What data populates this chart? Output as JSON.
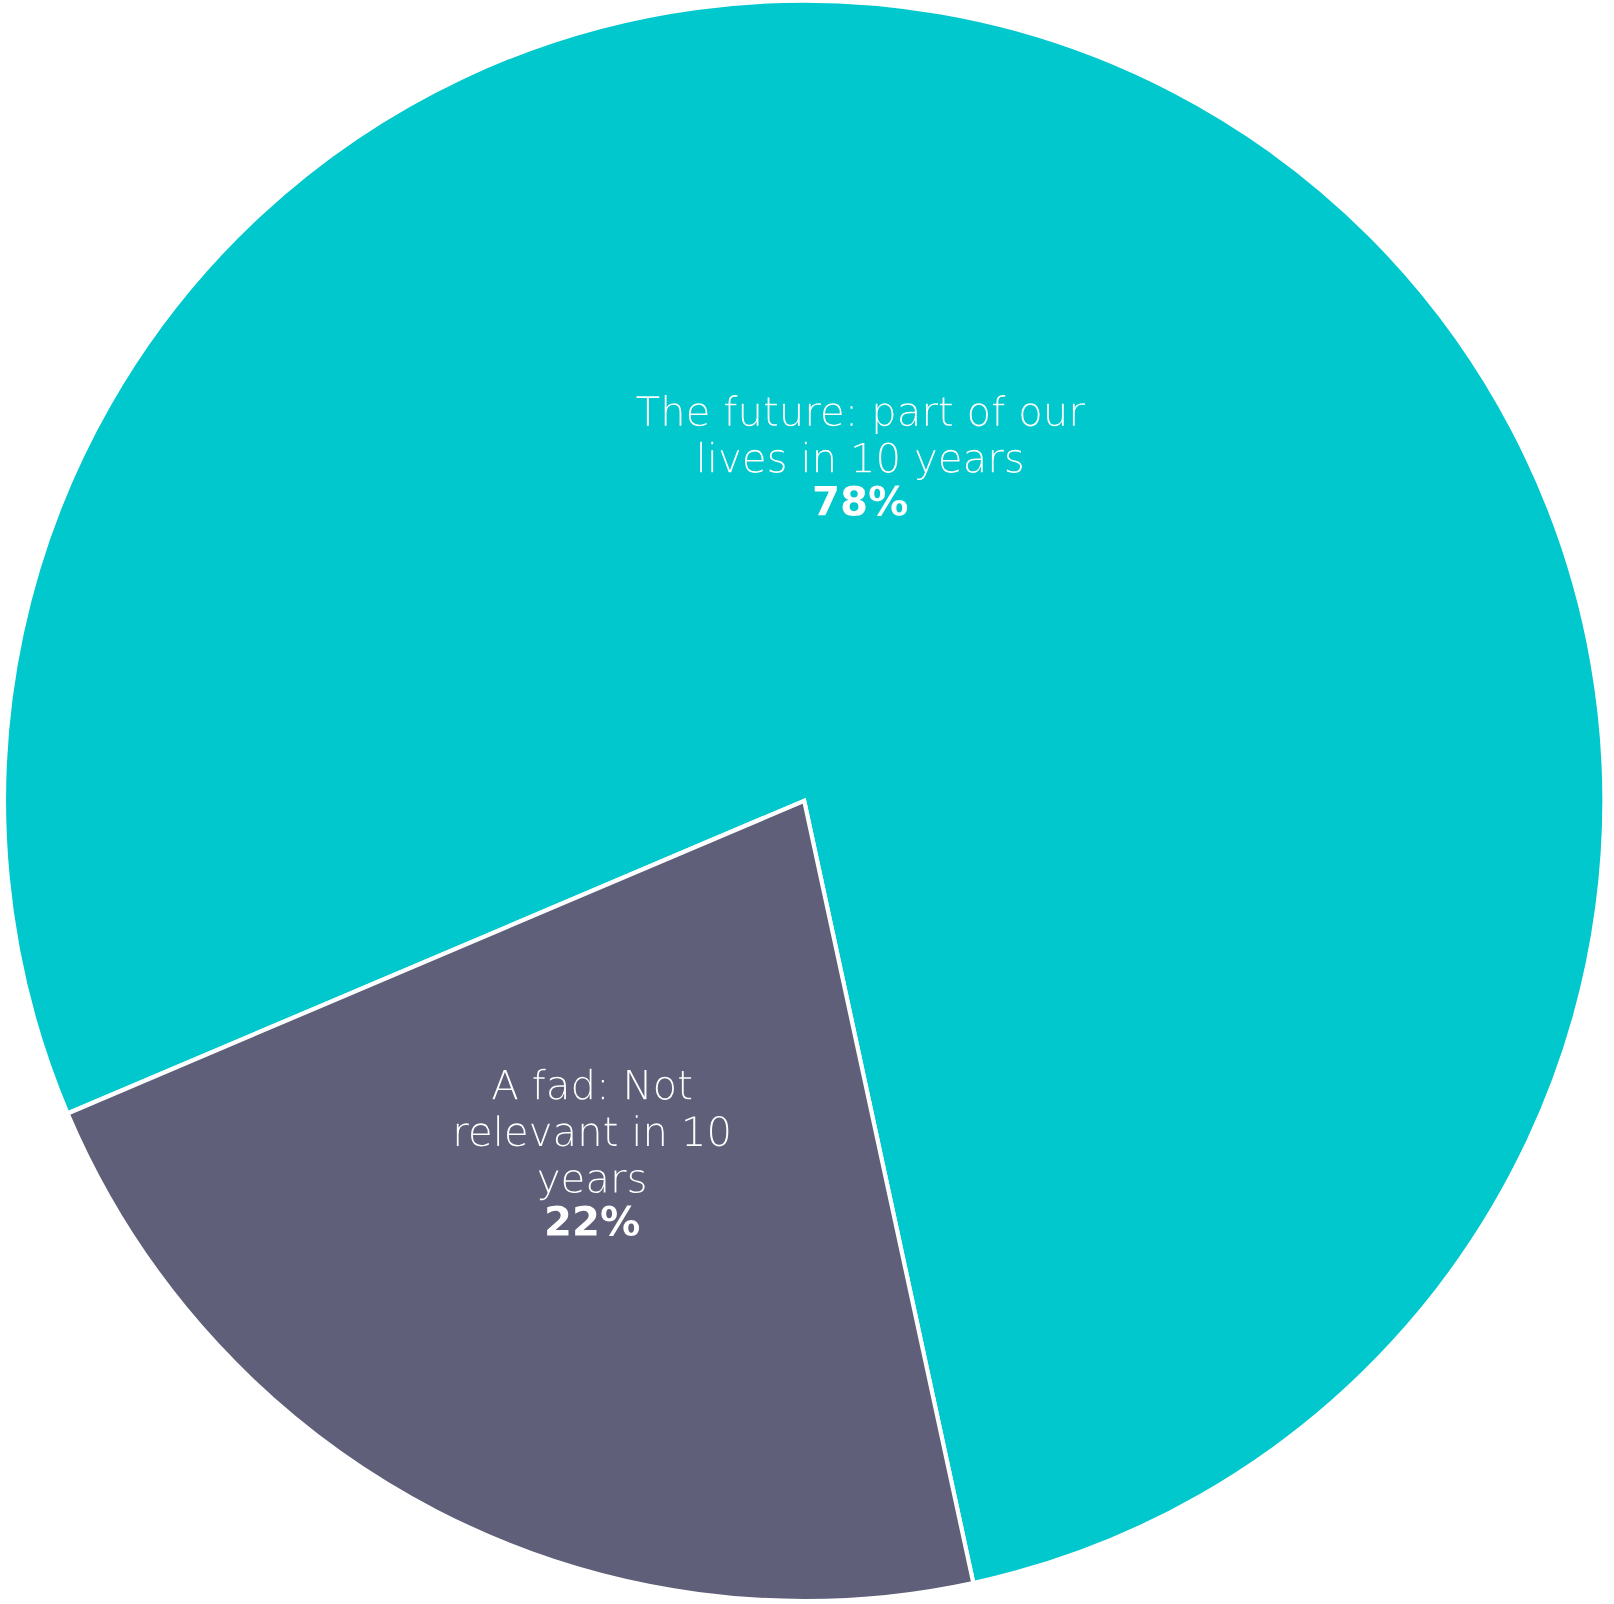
{
  "chart_data": {
    "type": "pie",
    "categories": [
      "The future: part of our\nlives in 10 years",
      "A fad: Not\nrelevant in 10\nyears"
    ],
    "values": [
      78,
      22
    ],
    "colors": [
      "#00c8cc",
      "#5f5f7a"
    ],
    "value_labels": [
      "78%",
      "22%"
    ]
  }
}
